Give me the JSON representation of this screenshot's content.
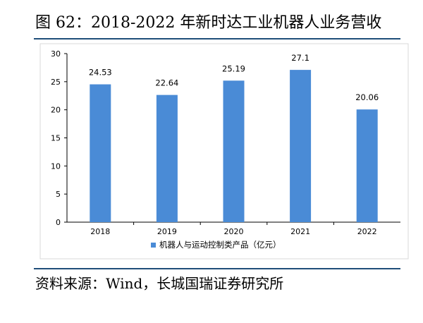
{
  "title": "图 62：2018-2022 年新时达工业机器人业务营收",
  "source": "资料来源：Wind，长城国瑞证券研究所",
  "chart_data": {
    "type": "bar",
    "title": "",
    "xlabel": "",
    "ylabel": "",
    "categories": [
      "2018",
      "2019",
      "2020",
      "2021",
      "2022"
    ],
    "series": [
      {
        "name": "机器人与运动控制类产品（亿元）",
        "values": [
          24.53,
          22.64,
          25.19,
          27.1,
          20.06
        ],
        "value_labels": [
          "24.53",
          "22.64",
          "25.19",
          "27.1",
          "20.06"
        ],
        "color": "#4a8bd6"
      }
    ],
    "ylim": [
      0,
      30
    ],
    "yticks": [
      0,
      5,
      10,
      15,
      20,
      25,
      30
    ],
    "grid": false,
    "legend_position": "bottom"
  }
}
